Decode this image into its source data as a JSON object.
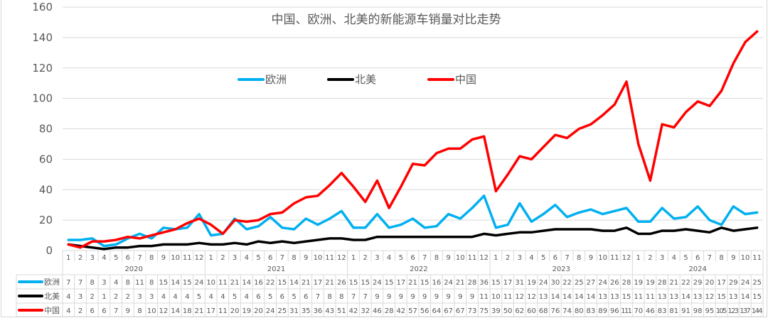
{
  "chart_data": {
    "type": "line",
    "title": "中国、欧洲、北美的新能源车销量对比走势",
    "xlabel": "",
    "ylabel": "",
    "ylim": [
      0,
      160
    ],
    "yticks": [
      0,
      20,
      40,
      60,
      80,
      100,
      120,
      140,
      160
    ],
    "grid": true,
    "legend_position": "top-center",
    "data_table": true,
    "years": [
      {
        "label": "2020",
        "months": 12
      },
      {
        "label": "2021",
        "months": 12
      },
      {
        "label": "2022",
        "months": 12
      },
      {
        "label": "2023",
        "months": 12
      },
      {
        "label": "2024",
        "months": 11
      }
    ],
    "categories": [
      "2020-1",
      "2020-2",
      "2020-3",
      "2020-4",
      "2020-5",
      "2020-6",
      "2020-7",
      "2020-8",
      "2020-9",
      "2020-10",
      "2020-11",
      "2020-12",
      "2021-1",
      "2021-2",
      "2021-3",
      "2021-4",
      "2021-5",
      "2021-6",
      "2021-7",
      "2021-8",
      "2021-9",
      "2021-10",
      "2021-11",
      "2021-12",
      "2022-1",
      "2022-2",
      "2022-3",
      "2022-4",
      "2022-5",
      "2022-6",
      "2022-7",
      "2022-8",
      "2022-9",
      "2022-10",
      "2022-11",
      "2022-12",
      "2023-1",
      "2023-2",
      "2023-3",
      "2023-4",
      "2023-5",
      "2023-6",
      "2023-7",
      "2023-8",
      "2023-9",
      "2023-10",
      "2023-11",
      "2023-12",
      "2024-1",
      "2024-2",
      "2024-3",
      "2024-4",
      "2024-5",
      "2024-6",
      "2024-7",
      "2024-8",
      "2024-9",
      "2024-10",
      "2024-11"
    ],
    "month_labels": [
      "1",
      "2",
      "3",
      "4",
      "5",
      "6",
      "7",
      "8",
      "9",
      "10",
      "11",
      "12",
      "1",
      "2",
      "3",
      "4",
      "5",
      "6",
      "7",
      "8",
      "9",
      "10",
      "11",
      "12",
      "1",
      "2",
      "3",
      "4",
      "5",
      "6",
      "7",
      "8",
      "9",
      "10",
      "11",
      "12",
      "1",
      "2",
      "3",
      "4",
      "5",
      "6",
      "7",
      "8",
      "9",
      "10",
      "11",
      "12",
      "1",
      "2",
      "3",
      "4",
      "5",
      "6",
      "7",
      "8",
      "9",
      "10",
      "11"
    ],
    "series": [
      {
        "name": "欧洲",
        "color": "#00B0F0",
        "values": [
          7,
          7,
          8,
          3,
          4,
          8,
          11,
          8,
          15,
          14,
          15,
          24,
          10,
          11,
          21,
          14,
          16,
          22,
          15,
          14,
          21,
          17,
          21,
          26,
          15,
          15,
          24,
          15,
          17,
          21,
          15,
          16,
          24,
          21,
          28,
          36,
          15,
          17,
          31,
          19,
          24,
          30,
          22,
          25,
          27,
          24,
          26,
          28,
          19,
          19,
          28,
          21,
          22,
          29,
          20,
          17,
          29,
          24,
          25
        ]
      },
      {
        "name": "北美",
        "color": "#000000",
        "values": [
          4,
          3,
          2,
          1,
          2,
          2,
          3,
          3,
          4,
          4,
          4,
          5,
          4,
          4,
          5,
          4,
          6,
          5,
          6,
          5,
          6,
          7,
          8,
          8,
          7,
          7,
          9,
          9,
          9,
          9,
          9,
          9,
          9,
          9,
          9,
          11,
          10,
          11,
          12,
          12,
          13,
          14,
          14,
          14,
          14,
          13,
          13,
          15,
          11,
          11,
          13,
          13,
          14,
          13,
          12,
          15,
          13,
          14,
          15
        ]
      },
      {
        "name": "中国",
        "color": "#FF0000",
        "values": [
          4,
          2,
          6,
          6,
          7,
          9,
          8,
          10,
          12,
          14,
          18,
          21,
          17,
          11,
          20,
          19,
          20,
          24,
          25,
          31,
          35,
          36,
          43,
          51,
          42,
          32,
          46,
          28,
          42,
          57,
          56,
          64,
          67,
          67,
          73,
          75,
          39,
          50,
          62,
          60,
          68,
          76,
          74,
          80,
          83,
          89,
          96,
          111,
          70,
          46,
          83,
          81,
          91,
          98,
          95,
          105,
          123,
          137,
          144
        ]
      }
    ]
  },
  "legend": {
    "items": [
      {
        "label": "欧洲",
        "color": "#00B0F0"
      },
      {
        "label": "北美",
        "color": "#000000"
      },
      {
        "label": "中国",
        "color": "#FF0000"
      }
    ]
  }
}
